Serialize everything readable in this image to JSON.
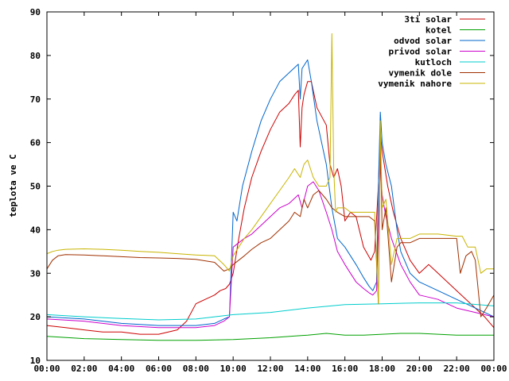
{
  "chart_data": {
    "type": "line",
    "title": "",
    "xlabel": "",
    "ylabel": "teplota ve C",
    "xlim": [
      0,
      24
    ],
    "ylim": [
      10,
      90
    ],
    "x_ticks": [
      {
        "value": 0,
        "label": "00:00"
      },
      {
        "value": 2,
        "label": "02:00"
      },
      {
        "value": 4,
        "label": "04:00"
      },
      {
        "value": 6,
        "label": "06:00"
      },
      {
        "value": 8,
        "label": "08:00"
      },
      {
        "value": 10,
        "label": "10:00"
      },
      {
        "value": 12,
        "label": "12:00"
      },
      {
        "value": 14,
        "label": "14:00"
      },
      {
        "value": 16,
        "label": "16:00"
      },
      {
        "value": 18,
        "label": "18:00"
      },
      {
        "value": 20,
        "label": "20:00"
      },
      {
        "value": 22,
        "label": "22:00"
      },
      {
        "value": 24,
        "label": "00:00"
      }
    ],
    "y_ticks": [
      10,
      20,
      30,
      40,
      50,
      60,
      70,
      80,
      90
    ],
    "grid": false,
    "legend_position": "top-right",
    "series": [
      {
        "name": "3ti solar",
        "color": "#cc0000",
        "x": [
          0,
          1,
          2,
          3,
          4,
          5,
          6,
          7,
          7.5,
          8,
          8.5,
          9,
          9.3,
          9.6,
          9.8,
          10,
          10.3,
          10.6,
          11,
          11.5,
          12,
          12.5,
          13,
          13.3,
          13.5,
          13.6,
          13.7,
          13.8,
          14,
          14.2,
          14.5,
          15,
          15.2,
          15.4,
          15.6,
          15.8,
          16,
          16.3,
          16.6,
          17,
          17.4,
          17.6,
          17.8,
          17.9,
          18,
          18.3,
          18.6,
          19,
          19.5,
          20,
          20.5,
          21,
          22,
          23,
          23.5,
          24
        ],
        "y": [
          18,
          17.5,
          17,
          16.5,
          16.5,
          16,
          16,
          17,
          19,
          23,
          24,
          25,
          26,
          26.5,
          27.5,
          30,
          38,
          45,
          52,
          58,
          63,
          67,
          69,
          71,
          72,
          59,
          68,
          71,
          74,
          74,
          68,
          64,
          55,
          52,
          54,
          50,
          42,
          44,
          43,
          36,
          33,
          35,
          50,
          62,
          58,
          50,
          44,
          38,
          33,
          30,
          32,
          30,
          26,
          22,
          20,
          17.5
        ]
      },
      {
        "name": "kotel",
        "color": "#00a000",
        "x": [
          0,
          2,
          4,
          6,
          8,
          10,
          12,
          14,
          15,
          16,
          17,
          18,
          19,
          20,
          21,
          22,
          23,
          24
        ],
        "y": [
          15.5,
          15,
          14.8,
          14.6,
          14.6,
          14.8,
          15.2,
          15.8,
          16.2,
          15.8,
          15.8,
          16,
          16.2,
          16.2,
          16,
          15.8,
          15.8,
          15.8
        ]
      },
      {
        "name": "odvod solar",
        "color": "#0066cc",
        "x": [
          0,
          2,
          4,
          6,
          8,
          9,
          9.5,
          9.8,
          10,
          10.2,
          10.5,
          11,
          11.5,
          12,
          12.5,
          13,
          13.5,
          13.6,
          13.7,
          14,
          14.2,
          14.5,
          15,
          15.3,
          15.6,
          16,
          16.3,
          16.6,
          17,
          17.3,
          17.5,
          17.7,
          17.8,
          17.9,
          18,
          18.2,
          18.5,
          18.8,
          19,
          19.5,
          20,
          21,
          22,
          23,
          24
        ],
        "y": [
          20,
          19.5,
          18.5,
          18,
          18,
          18.5,
          19.5,
          20,
          44,
          42,
          50,
          58,
          65,
          70,
          74,
          76,
          78,
          70,
          77,
          79,
          74,
          65,
          55,
          45,
          38,
          36,
          34,
          32,
          29,
          27,
          26,
          28,
          50,
          67,
          60,
          55,
          50,
          40,
          35,
          30,
          28,
          26,
          24,
          22,
          20
        ]
      },
      {
        "name": "privod solar",
        "color": "#cc00cc",
        "x": [
          0,
          2,
          4,
          6,
          8,
          9,
          9.5,
          9.8,
          10,
          10.3,
          10.6,
          11,
          11.5,
          12,
          12.5,
          13,
          13.5,
          13.7,
          14,
          14.3,
          14.6,
          15,
          15.3,
          15.6,
          16,
          16.3,
          16.6,
          17,
          17.3,
          17.5,
          17.7,
          17.8,
          17.9,
          18,
          18.2,
          18.5,
          19,
          19.5,
          20,
          21,
          22,
          23,
          24
        ],
        "y": [
          19.5,
          19,
          18,
          17.5,
          17.5,
          18,
          19,
          20,
          36,
          37,
          38,
          39,
          41,
          43,
          45,
          46,
          48,
          45,
          50,
          51,
          49,
          44,
          40,
          35,
          32,
          30,
          28,
          26.5,
          25.5,
          25,
          26,
          40,
          55,
          48,
          43,
          38,
          32,
          28,
          25,
          24,
          22,
          21,
          20
        ]
      },
      {
        "name": "kutloch",
        "color": "#00cccc",
        "x": [
          0,
          2,
          4,
          6,
          8,
          10,
          12,
          14,
          16,
          18,
          20,
          22,
          24
        ],
        "y": [
          20.5,
          20,
          19.6,
          19.3,
          19.5,
          20.5,
          21,
          22,
          22.8,
          23,
          23.2,
          23.2,
          22.5
        ]
      },
      {
        "name": "vymenik dole",
        "color": "#a03000",
        "x": [
          0,
          0.3,
          0.6,
          1,
          2,
          3,
          4,
          5,
          6,
          7,
          8,
          9,
          9.5,
          9.8,
          10,
          10.3,
          10.6,
          11,
          11.5,
          12,
          12.5,
          13,
          13.3,
          13.6,
          13.8,
          14,
          14.3,
          14.6,
          15,
          15.3,
          15.6,
          16,
          16.3,
          16.6,
          17,
          17.3,
          17.6,
          17.8,
          17.9,
          18,
          18.2,
          18.5,
          18.8,
          19,
          19.5,
          20,
          21,
          22,
          22.2,
          22.5,
          22.8,
          23,
          23.3,
          23.6,
          24
        ],
        "y": [
          31,
          33,
          34,
          34.3,
          34.2,
          34,
          33.8,
          33.6,
          33.5,
          33.4,
          33.2,
          32.5,
          30.5,
          31,
          32,
          33,
          34,
          35.5,
          37,
          38,
          40,
          42,
          44,
          43,
          47,
          45,
          48,
          49,
          47,
          45,
          44,
          43,
          43,
          43,
          43,
          43,
          42,
          23,
          60,
          40,
          45,
          28,
          36,
          37,
          37,
          38,
          38,
          38,
          30,
          34,
          35,
          33,
          20,
          22,
          25
        ]
      },
      {
        "name": "vymenik nahore",
        "color": "#c8b400",
        "x": [
          0,
          0.3,
          0.6,
          1,
          2,
          3,
          4,
          5,
          6,
          7,
          8,
          9,
          9.5,
          9.8,
          10,
          10.3,
          10.6,
          11,
          11.5,
          12,
          12.5,
          13,
          13.3,
          13.6,
          13.8,
          14,
          14.3,
          14.6,
          15,
          15.2,
          15.3,
          15.4,
          15.5,
          15.6,
          16,
          16.3,
          16.6,
          17,
          17.3,
          17.6,
          17.8,
          17.9,
          18,
          18.2,
          18.5,
          18.8,
          19,
          19.5,
          20,
          21,
          22,
          22.3,
          22.6,
          23,
          23.3,
          23.6,
          24
        ],
        "y": [
          34.5,
          35,
          35.3,
          35.5,
          35.6,
          35.5,
          35.3,
          35,
          34.8,
          34.5,
          34.2,
          34,
          32,
          30.5,
          34,
          36,
          38,
          40,
          43,
          46,
          49,
          52,
          54,
          52,
          55,
          56,
          52,
          50,
          50,
          52,
          85,
          54,
          44,
          45,
          45,
          44,
          44,
          44,
          44,
          44,
          23,
          65,
          45,
          47,
          32,
          38,
          38,
          38,
          39,
          39,
          38.5,
          38.5,
          36,
          36,
          30,
          31,
          31
        ]
      }
    ]
  }
}
